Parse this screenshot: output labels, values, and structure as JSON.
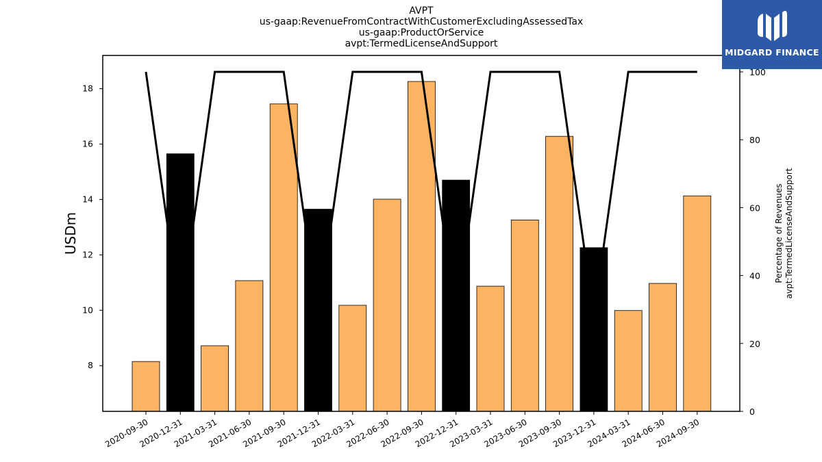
{
  "title_lines": [
    "AVPT",
    "us-gaap:RevenueFromContractWithCustomerExcludingAssessedTax",
    "us-gaap:ProductOrService",
    "avpt:TermedLicenseAndSupport"
  ],
  "logo": {
    "text": "MIDGARD FINANCE",
    "background": "#2c5aa8"
  },
  "chart_data": {
    "type": "bar",
    "categories": [
      "2020-09-30",
      "2020-12-31",
      "2021-03-31",
      "2021-06-30",
      "2021-09-30",
      "2021-12-31",
      "2022-03-31",
      "2022-06-30",
      "2022-09-30",
      "2022-12-31",
      "2023-03-31",
      "2023-06-30",
      "2023-09-30",
      "2023-12-31",
      "2024-03-31",
      "2024-06-30",
      "2024-09-30"
    ],
    "values": [
      8.15,
      15.65,
      8.72,
      11.07,
      17.45,
      13.65,
      10.18,
      14.01,
      18.26,
      14.7,
      10.87,
      13.26,
      16.28,
      12.26,
      9.99,
      10.97,
      14.13
    ],
    "bar_colors": [
      "#fdb462",
      "#000000",
      "#fdb462",
      "#fdb462",
      "#fdb462",
      "#000000",
      "#fdb462",
      "#fdb462",
      "#fdb462",
      "#000000",
      "#fdb462",
      "#fdb462",
      "#fdb462",
      "#000000",
      "#fdb462",
      "#fdb462",
      "#fdb462"
    ],
    "ylabel": "USDm",
    "ylim": [
      6.35,
      19.2
    ],
    "yticks": [
      8,
      10,
      12,
      14,
      16,
      18
    ],
    "secondary": {
      "type": "line",
      "ylabel": [
        "Percentage of Revenues",
        "avpt:TermedLicenseAndSupport"
      ],
      "ylim": [
        0,
        100
      ],
      "yticks": [
        0,
        20,
        40,
        60,
        80,
        100
      ],
      "values": [
        100,
        28,
        100,
        100,
        100,
        28,
        100,
        100,
        100,
        28,
        100,
        100,
        100,
        28,
        100,
        100,
        100
      ],
      "color": "#000000"
    },
    "grid": false,
    "legend": "none"
  }
}
